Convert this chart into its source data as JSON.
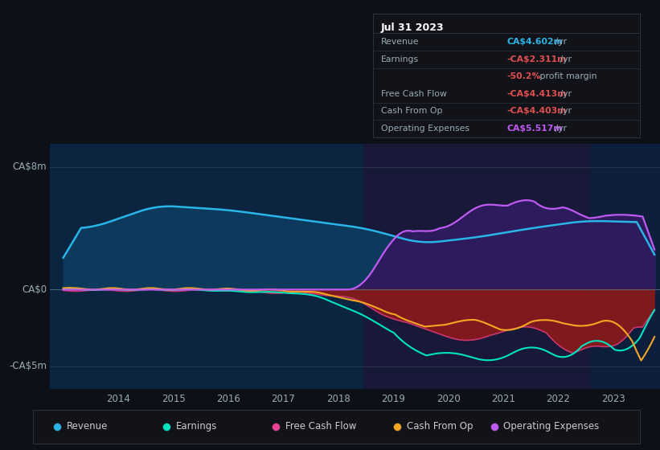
{
  "bg_color": "#0d1117",
  "ylabel_top": "CA$8m",
  "ylabel_zero": "CA$0",
  "ylabel_bottom": "-CA$5m",
  "ylim": [
    -6.5,
    9.5
  ],
  "xlim_start": 2012.75,
  "xlim_end": 2023.85,
  "xticks": [
    2014,
    2015,
    2016,
    2017,
    2018,
    2019,
    2020,
    2021,
    2022,
    2023
  ],
  "yticks_labeled": [
    8.0,
    0.0,
    -5.0
  ],
  "region1_end": 2018.45,
  "region2_end": 2022.6,
  "region1_color": "#0b2540",
  "region2_color": "#181838",
  "region3_color": "#0d1f3c",
  "revenue_line_color": "#29b5e8",
  "earnings_line_color": "#00e5c0",
  "fcf_line_color": "#e84393",
  "cashop_line_color": "#f5a623",
  "opex_line_color": "#bf5af2",
  "revenue_fill_color": "#0d3a5c",
  "opex_fill_color": "#2d1b5e",
  "below_zero_fill": "#8b1a1a",
  "info_bg": "#111318",
  "title": "Jul 31 2023",
  "info_revenue_label": "Revenue",
  "info_revenue_val": "CA$4.602m",
  "info_revenue_color": "#29b5e8",
  "info_earnings_label": "Earnings",
  "info_earnings_val": "-CA$2.311m",
  "info_earnings_color": "#e05050",
  "info_margin": "-50.2%",
  "info_margin_text": " profit margin",
  "info_fcf_label": "Free Cash Flow",
  "info_fcf_val": "-CA$4.413m",
  "info_fcf_color": "#e05050",
  "info_cashop_label": "Cash From Op",
  "info_cashop_val": "-CA$4.403m",
  "info_cashop_color": "#e05050",
  "info_opex_label": "Operating Expenses",
  "info_opex_val": "CA$5.517m",
  "info_opex_color": "#bf5af2",
  "legend_labels": [
    "Revenue",
    "Earnings",
    "Free Cash Flow",
    "Cash From Op",
    "Operating Expenses"
  ],
  "legend_colors": [
    "#29b5e8",
    "#00e5c0",
    "#e84393",
    "#f5a623",
    "#bf5af2"
  ]
}
